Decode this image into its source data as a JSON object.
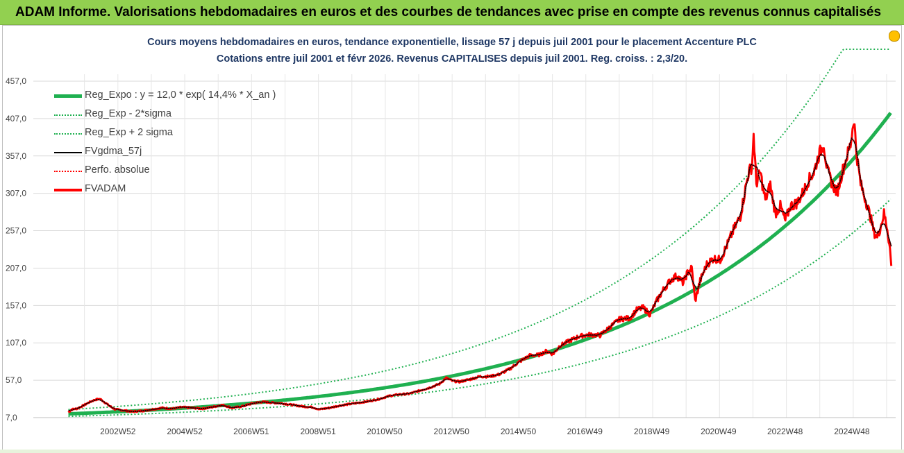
{
  "header": {
    "banner_title": "ADAM Informe. Valorisations hebdomadaires en euros et des courbes de tendances avec prise en compte des revenus connus capitalisés"
  },
  "chart_data": {
    "type": "line",
    "title": "Cours moyens hebdomadaires en euros, tendance exponentielle, lissage 57 j depuis juil 2001 pour le placement Accenture PLC",
    "subtitle": "Cotations entre juil 2001 et févr 2026. Revenus CAPITALISES depuis juil 2001. Reg. croiss. : 2,3/20.",
    "xlabel": "",
    "ylabel": "",
    "ylim": [
      7.0,
      457.0
    ],
    "yticks": [
      "457,0",
      "407,0",
      "357,0",
      "307,0",
      "257,0",
      "207,0",
      "157,0",
      "107,0",
      "57,0",
      "7,0"
    ],
    "xticks": [
      "2002W52",
      "2004W52",
      "2006W51",
      "2008W51",
      "2010W50",
      "2012W50",
      "2014W50",
      "2016W49",
      "2018W49",
      "2020W49",
      "2022W48",
      "2024W48"
    ],
    "xtick_years": [
      2002.98,
      2004.98,
      2006.97,
      2008.97,
      2010.96,
      2012.96,
      2014.96,
      2016.95,
      2018.95,
      2020.95,
      2022.94,
      2024.94
    ],
    "x_start": 2001.5,
    "x_end": 2026.12,
    "grid": true,
    "legend_position": "top-left",
    "regression": {
      "a": 12.0,
      "r": 0.144,
      "sigma_factor": 0.48
    },
    "series": [
      {
        "name": "Reg_Expo : y = 12,0 * exp( 14,4% *  X_an )",
        "color": "#1fb050",
        "style": "solid-thick"
      },
      {
        "name": "Reg_Exp - 2*sigma",
        "color": "#1fb050",
        "style": "dotted"
      },
      {
        "name": "Reg_Exp + 2 sigma",
        "color": "#1fb050",
        "style": "dotted"
      },
      {
        "name": "FVgdma_57j",
        "color": "#000000",
        "style": "solid"
      },
      {
        "name": "Perfo. absolue",
        "color": "#ff0000",
        "style": "dotted"
      },
      {
        "name": "FVADAM",
        "color": "#ff0000",
        "style": "solid-thick"
      }
    ],
    "fvadam_points": [
      [
        2001.5,
        14
      ],
      [
        2001.6,
        18
      ],
      [
        2001.75,
        19
      ],
      [
        2001.9,
        22
      ],
      [
        2002.1,
        27
      ],
      [
        2002.3,
        31
      ],
      [
        2002.45,
        32
      ],
      [
        2002.6,
        27
      ],
      [
        2002.75,
        22
      ],
      [
        2002.9,
        18
      ],
      [
        2003.1,
        17
      ],
      [
        2003.4,
        15
      ],
      [
        2003.7,
        16
      ],
      [
        2004.0,
        18
      ],
      [
        2004.3,
        20
      ],
      [
        2004.6,
        19
      ],
      [
        2004.9,
        21
      ],
      [
        2005.2,
        20
      ],
      [
        2005.5,
        19
      ],
      [
        2005.8,
        21
      ],
      [
        2006.1,
        24
      ],
      [
        2006.4,
        20
      ],
      [
        2006.7,
        22
      ],
      [
        2007.0,
        26
      ],
      [
        2007.3,
        28
      ],
      [
        2007.6,
        27
      ],
      [
        2007.9,
        26
      ],
      [
        2008.2,
        24
      ],
      [
        2008.5,
        22
      ],
      [
        2008.8,
        21
      ],
      [
        2009.0,
        18
      ],
      [
        2009.3,
        20
      ],
      [
        2009.6,
        23
      ],
      [
        2009.9,
        25
      ],
      [
        2010.2,
        27
      ],
      [
        2010.5,
        29
      ],
      [
        2010.8,
        32
      ],
      [
        2011.1,
        36
      ],
      [
        2011.4,
        38
      ],
      [
        2011.7,
        39
      ],
      [
        2012.0,
        43
      ],
      [
        2012.3,
        47
      ],
      [
        2012.6,
        52
      ],
      [
        2012.8,
        60
      ],
      [
        2013.0,
        56
      ],
      [
        2013.2,
        55
      ],
      [
        2013.5,
        58
      ],
      [
        2013.8,
        62
      ],
      [
        2014.1,
        62
      ],
      [
        2014.4,
        65
      ],
      [
        2014.7,
        72
      ],
      [
        2015.0,
        82
      ],
      [
        2015.3,
        90
      ],
      [
        2015.6,
        91
      ],
      [
        2015.8,
        96
      ],
      [
        2016.0,
        92
      ],
      [
        2016.2,
        103
      ],
      [
        2016.5,
        110
      ],
      [
        2016.8,
        116
      ],
      [
        2017.1,
        118
      ],
      [
        2017.4,
        117
      ],
      [
        2017.7,
        128
      ],
      [
        2018.0,
        139
      ],
      [
        2018.3,
        140
      ],
      [
        2018.5,
        151
      ],
      [
        2018.7,
        154
      ],
      [
        2018.9,
        145
      ],
      [
        2019.1,
        163
      ],
      [
        2019.3,
        178
      ],
      [
        2019.5,
        190
      ],
      [
        2019.7,
        197
      ],
      [
        2019.9,
        187
      ],
      [
        2020.0,
        199
      ],
      [
        2020.15,
        207
      ],
      [
        2020.25,
        163
      ],
      [
        2020.4,
        190
      ],
      [
        2020.6,
        212
      ],
      [
        2020.8,
        220
      ],
      [
        2021.0,
        218
      ],
      [
        2021.2,
        237
      ],
      [
        2021.4,
        258
      ],
      [
        2021.6,
        276
      ],
      [
        2021.75,
        312
      ],
      [
        2021.85,
        335
      ],
      [
        2021.95,
        343
      ],
      [
        2022.0,
        385
      ],
      [
        2022.08,
        320
      ],
      [
        2022.2,
        335
      ],
      [
        2022.35,
        298
      ],
      [
        2022.5,
        318
      ],
      [
        2022.65,
        280
      ],
      [
        2022.8,
        290
      ],
      [
        2022.95,
        270
      ],
      [
        2023.1,
        290
      ],
      [
        2023.3,
        294
      ],
      [
        2023.5,
        310
      ],
      [
        2023.65,
        325
      ],
      [
        2023.8,
        335
      ],
      [
        2023.95,
        358
      ],
      [
        2024.1,
        373
      ],
      [
        2024.2,
        338
      ],
      [
        2024.35,
        320
      ],
      [
        2024.5,
        308
      ],
      [
        2024.65,
        335
      ],
      [
        2024.8,
        358
      ],
      [
        2024.9,
        372
      ],
      [
        2025.0,
        408
      ],
      [
        2025.08,
        360
      ],
      [
        2025.2,
        320
      ],
      [
        2025.35,
        298
      ],
      [
        2025.5,
        275
      ],
      [
        2025.6,
        255
      ],
      [
        2025.7,
        248
      ],
      [
        2025.8,
        262
      ],
      [
        2025.9,
        280
      ],
      [
        2026.0,
        260
      ],
      [
        2026.08,
        232
      ],
      [
        2026.12,
        210
      ]
    ]
  }
}
